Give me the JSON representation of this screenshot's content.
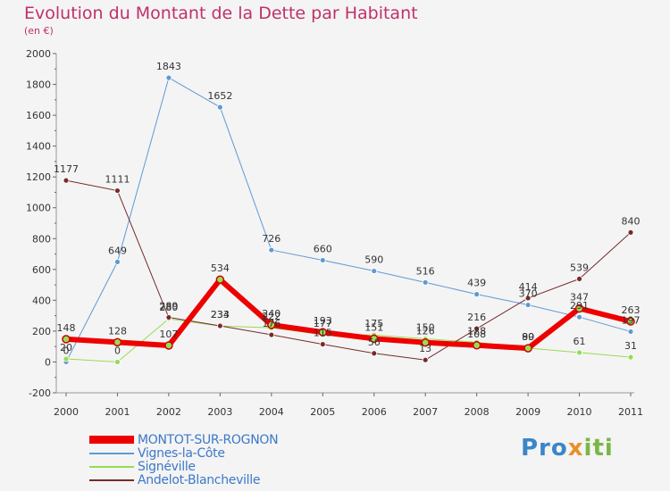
{
  "title": "Evolution du Montant de la Dette par Habitant",
  "subtitle": "(en €)",
  "logo_text": "Proxiti",
  "chart_data": {
    "type": "line",
    "title": "Evolution du Montant de la Dette par Habitant",
    "subtitle": "(en €)",
    "xlabel": "",
    "ylabel": "",
    "x": [
      2000,
      2001,
      2002,
      2003,
      2004,
      2005,
      2006,
      2007,
      2008,
      2009,
      2010,
      2011
    ],
    "ylim": [
      -200,
      2000
    ],
    "yticks": [
      -200,
      0,
      200,
      400,
      600,
      800,
      1000,
      1200,
      1400,
      1600,
      1800,
      2000
    ],
    "grid": false,
    "legend_position": "bottom-left",
    "series": [
      {
        "name": "MONTOT-SUR-ROGNON",
        "color": "#ee0000",
        "width": 6,
        "values": [
          148,
          128,
          107,
          534,
          240,
          193,
          151,
          126,
          108,
          89,
          347,
          263
        ],
        "labels": [
          "148",
          "128",
          "107",
          "534",
          "240",
          "193",
          "151",
          "126",
          "108",
          "89",
          "347",
          "263"
        ]
      },
      {
        "name": "Vignes-la-Côte",
        "color": "#5e9ad4",
        "width": 1,
        "values": [
          0,
          649,
          1843,
          1652,
          726,
          660,
          590,
          516,
          439,
          370,
          291,
          197
        ],
        "labels": [
          "0",
          "649",
          "1843",
          "1652",
          "726",
          "660",
          "590",
          "516",
          "439",
          "370",
          "291",
          "197"
        ]
      },
      {
        "name": "Signéville",
        "color": "#96dc50",
        "width": 1,
        "values": [
          20,
          0,
          280,
          233,
          222,
          177,
          175,
          150,
          128,
          90,
          61,
          31
        ],
        "labels": [
          "20",
          "0",
          "280",
          "233",
          "222",
          "177",
          "175",
          "150",
          "128",
          "90",
          "61",
          "31"
        ]
      },
      {
        "name": "Andelot-Blancheville",
        "color": "#782a2a",
        "width": 1,
        "values": [
          1177,
          1111,
          289,
          234,
          176,
          115,
          56,
          13,
          216,
          414,
          539,
          840
        ],
        "labels": [
          "1177",
          "1111",
          "289",
          "234",
          "176",
          "115",
          "56",
          "13",
          "216",
          "414",
          "539",
          "840"
        ]
      }
    ]
  }
}
